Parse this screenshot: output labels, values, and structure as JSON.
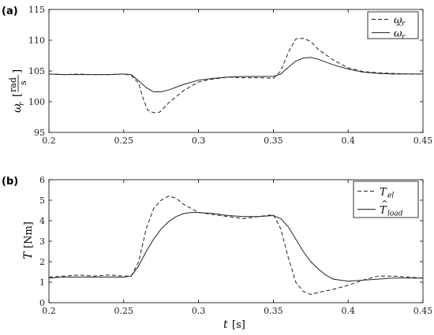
{
  "chart_data": [
    {
      "panel_label": "(a)",
      "type": "line",
      "ylabel": "ω_r [rad/s]",
      "ylabel_symbol": "ω",
      "ylabel_sub": "r",
      "ylabel_unit_num": "rad",
      "ylabel_unit_den": "s",
      "xlim": [
        0.2,
        0.45
      ],
      "ylim": [
        95,
        115
      ],
      "xticks": [
        "0.2",
        "0.25",
        "0.3",
        "0.35",
        "0.4",
        "0.45"
      ],
      "yticks": [
        "95",
        "100",
        "105",
        "110",
        "115"
      ],
      "legend_position": "top-right",
      "series": [
        {
          "name": "ω_r",
          "legend_symbol": "ω",
          "legend_sub": "r",
          "hat": false,
          "style": "dashed",
          "x": [
            0.2,
            0.21,
            0.22,
            0.23,
            0.24,
            0.25,
            0.255,
            0.26,
            0.263,
            0.266,
            0.27,
            0.274,
            0.28,
            0.29,
            0.3,
            0.31,
            0.32,
            0.33,
            0.34,
            0.35,
            0.355,
            0.36,
            0.365,
            0.37,
            0.375,
            0.38,
            0.39,
            0.4,
            0.41,
            0.42,
            0.43,
            0.44,
            0.45
          ],
          "y": [
            104.5,
            104.4,
            104.5,
            104.4,
            104.4,
            104.5,
            104.3,
            103.0,
            100.5,
            98.6,
            98.2,
            98.3,
            99.8,
            101.8,
            103.2,
            103.7,
            104.0,
            103.9,
            103.9,
            103.8,
            105.0,
            108.0,
            110.2,
            110.3,
            109.8,
            108.5,
            106.8,
            105.5,
            104.9,
            104.7,
            104.6,
            104.5,
            104.5
          ]
        },
        {
          "name": "ω̂_r",
          "legend_symbol": "ω",
          "legend_sub": "r",
          "hat": true,
          "style": "solid",
          "x": [
            0.2,
            0.21,
            0.22,
            0.23,
            0.24,
            0.25,
            0.255,
            0.26,
            0.265,
            0.27,
            0.275,
            0.28,
            0.29,
            0.3,
            0.31,
            0.32,
            0.33,
            0.34,
            0.35,
            0.355,
            0.36,
            0.365,
            0.37,
            0.375,
            0.38,
            0.39,
            0.4,
            0.41,
            0.42,
            0.43,
            0.44,
            0.45
          ],
          "y": [
            104.5,
            104.4,
            104.4,
            104.4,
            104.4,
            104.5,
            104.4,
            103.4,
            102.3,
            101.6,
            101.6,
            101.9,
            102.8,
            103.5,
            103.8,
            104.0,
            104.1,
            104.1,
            104.1,
            104.5,
            105.6,
            106.6,
            107.1,
            107.2,
            106.9,
            106.0,
            105.3,
            104.8,
            104.6,
            104.5,
            104.5,
            104.5
          ]
        }
      ]
    },
    {
      "panel_label": "(b)",
      "type": "line",
      "ylabel": "T [Nm]",
      "ylabel_symbol": "T",
      "ylabel_unit": "[Nm]",
      "xlabel": "t [s]",
      "xlabel_symbol": "t",
      "xlabel_unit": "[s]",
      "xlim": [
        0.2,
        0.45
      ],
      "ylim": [
        0,
        6
      ],
      "xticks": [
        "0.2",
        "0.25",
        "0.3",
        "0.35",
        "0.4",
        "0.45"
      ],
      "yticks": [
        "0",
        "1",
        "2",
        "3",
        "4",
        "5",
        "6"
      ],
      "legend_position": "top-right",
      "series": [
        {
          "name": "T_el",
          "legend_symbol": "T",
          "legend_sub": "el",
          "hat": false,
          "style": "dashed",
          "x": [
            0.2,
            0.21,
            0.22,
            0.23,
            0.24,
            0.25,
            0.255,
            0.26,
            0.265,
            0.27,
            0.275,
            0.28,
            0.285,
            0.29,
            0.3,
            0.31,
            0.32,
            0.33,
            0.34,
            0.35,
            0.355,
            0.36,
            0.365,
            0.37,
            0.375,
            0.38,
            0.39,
            0.4,
            0.41,
            0.42,
            0.43,
            0.44,
            0.45
          ],
          "y": [
            1.25,
            1.3,
            1.35,
            1.3,
            1.35,
            1.3,
            1.3,
            2.0,
            3.6,
            4.6,
            5.0,
            5.2,
            5.1,
            4.8,
            4.4,
            4.3,
            4.2,
            4.1,
            4.2,
            4.3,
            3.6,
            2.2,
            1.0,
            0.55,
            0.4,
            0.5,
            0.65,
            0.85,
            1.1,
            1.3,
            1.3,
            1.25,
            1.2
          ]
        },
        {
          "name": "T̂_load",
          "legend_symbol": "T",
          "legend_sub": "load",
          "hat": true,
          "style": "solid",
          "x": [
            0.2,
            0.21,
            0.22,
            0.23,
            0.24,
            0.25,
            0.255,
            0.26,
            0.265,
            0.27,
            0.275,
            0.28,
            0.285,
            0.29,
            0.295,
            0.3,
            0.31,
            0.32,
            0.33,
            0.34,
            0.35,
            0.355,
            0.36,
            0.365,
            0.37,
            0.375,
            0.38,
            0.385,
            0.39,
            0.4,
            0.41,
            0.42,
            0.43,
            0.44,
            0.45
          ],
          "y": [
            1.2,
            1.25,
            1.25,
            1.25,
            1.25,
            1.25,
            1.3,
            1.8,
            2.5,
            3.1,
            3.6,
            3.95,
            4.2,
            4.35,
            4.4,
            4.4,
            4.35,
            4.25,
            4.2,
            4.2,
            4.25,
            4.1,
            3.7,
            3.1,
            2.5,
            2.0,
            1.65,
            1.35,
            1.15,
            1.05,
            1.1,
            1.15,
            1.2,
            1.2,
            1.2
          ]
        }
      ]
    }
  ]
}
